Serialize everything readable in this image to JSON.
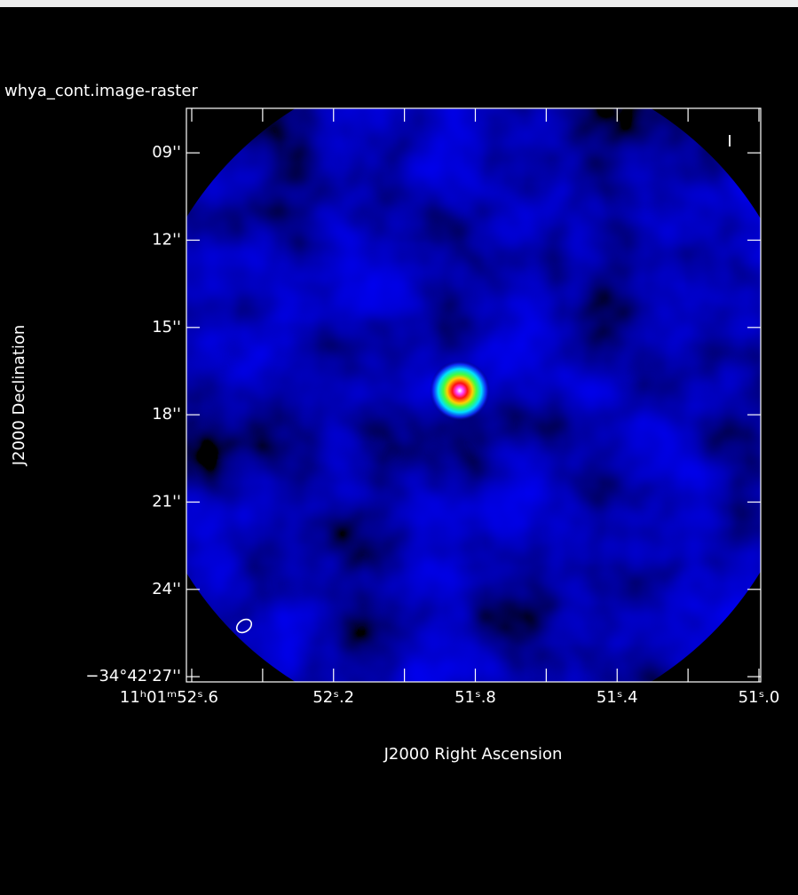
{
  "chart_data": {
    "type": "image",
    "title": "whya_cont.image-raster",
    "xlabel": "J2000 Right Ascension",
    "ylabel": "J2000 Declination",
    "stokes": "I",
    "xlim": [
      52.615,
      50.995
    ],
    "ylim": [
      27.18,
      7.47
    ],
    "xticks": [
      {
        "value": 52.6,
        "label": "11ʰ01ᵐ52ˢ.6"
      },
      {
        "value": 52.2,
        "label": "52ˢ.2"
      },
      {
        "value": 51.8,
        "label": "51ˢ.8"
      },
      {
        "value": 51.4,
        "label": "51ˢ.4"
      },
      {
        "value": 51.0,
        "label": "51ˢ.0"
      }
    ],
    "xminorticks": [
      52.4,
      52.0,
      51.6,
      51.2
    ],
    "yticks": [
      {
        "value": 9,
        "label": "09''"
      },
      {
        "value": 12,
        "label": "12''"
      },
      {
        "value": 15,
        "label": "15''"
      },
      {
        "value": 18,
        "label": "18''"
      },
      {
        "value": 21,
        "label": "21''"
      },
      {
        "value": 24,
        "label": "24''"
      },
      {
        "value": 27,
        "label": "−34°42'27''"
      }
    ]
  }
}
